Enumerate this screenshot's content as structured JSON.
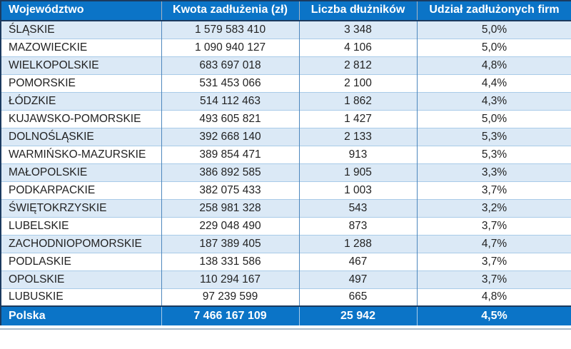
{
  "chart_data": {
    "type": "table",
    "title": "",
    "columns": [
      "Województwo",
      "Kwota zadłużenia (zł)",
      "Liczba dłużników",
      "Udział zadłużonych firm"
    ],
    "rows": [
      [
        "ŚLĄSKIE",
        "1 579 583 410",
        "3 348",
        "5,0%"
      ],
      [
        "MAZOWIECKIE",
        "1 090 940 127",
        "4 106",
        "5,0%"
      ],
      [
        "WIELKOPOLSKIE",
        "683 697 018",
        "2 812",
        "4,8%"
      ],
      [
        "POMORSKIE",
        "531 453 066",
        "2 100",
        "4,4%"
      ],
      [
        "ŁÓDZKIE",
        "514 112 463",
        "1 862",
        "4,3%"
      ],
      [
        "KUJAWSKO-POMORSKIE",
        "493 605 821",
        "1 427",
        "5,0%"
      ],
      [
        "DOLNOŚLĄSKIE",
        "392 668 140",
        "2 133",
        "5,3%"
      ],
      [
        "WARMIŃSKO-MAZURSKIE",
        "389 854 471",
        "913",
        "5,3%"
      ],
      [
        "MAŁOPOLSKIE",
        "386 892 585",
        "1 905",
        "3,3%"
      ],
      [
        "PODKARPACKIE",
        "382 075 433",
        "1 003",
        "3,7%"
      ],
      [
        "ŚWIĘTOKRZYSKIE",
        "258 981 328",
        "543",
        "3,2%"
      ],
      [
        "LUBELSKIE",
        "229 048 490",
        "873",
        "3,7%"
      ],
      [
        "ZACHODNIOPOMORSKIE",
        "187 389 405",
        "1 288",
        "4,7%"
      ],
      [
        "PODLASKIE",
        "138 331 586",
        "467",
        "3,7%"
      ],
      [
        "OPOLSKIE",
        "110 294 167",
        "497",
        "3,7%"
      ],
      [
        "LUBUSKIE",
        "97 239 599",
        "665",
        "4,8%"
      ]
    ],
    "total_row": [
      "Polska",
      "7 466 167 109",
      "25 942",
      "4,5%"
    ],
    "layout": {
      "grid": true,
      "zebra_striping": true,
      "column_alignment": [
        "left",
        "center",
        "center",
        "center"
      ]
    }
  },
  "colors": {
    "header_bg": "#0b74c7",
    "footer_bg": "#0b74c7",
    "row_alt_bg": "#dbe9f6",
    "row_bg": "#ffffff",
    "border_dark": "#1b3a5f",
    "grid_vertical": "#4d87bd",
    "grid_horizontal": "#a9cbe8",
    "header_text": "#ffffff",
    "data_text": "#222222"
  }
}
